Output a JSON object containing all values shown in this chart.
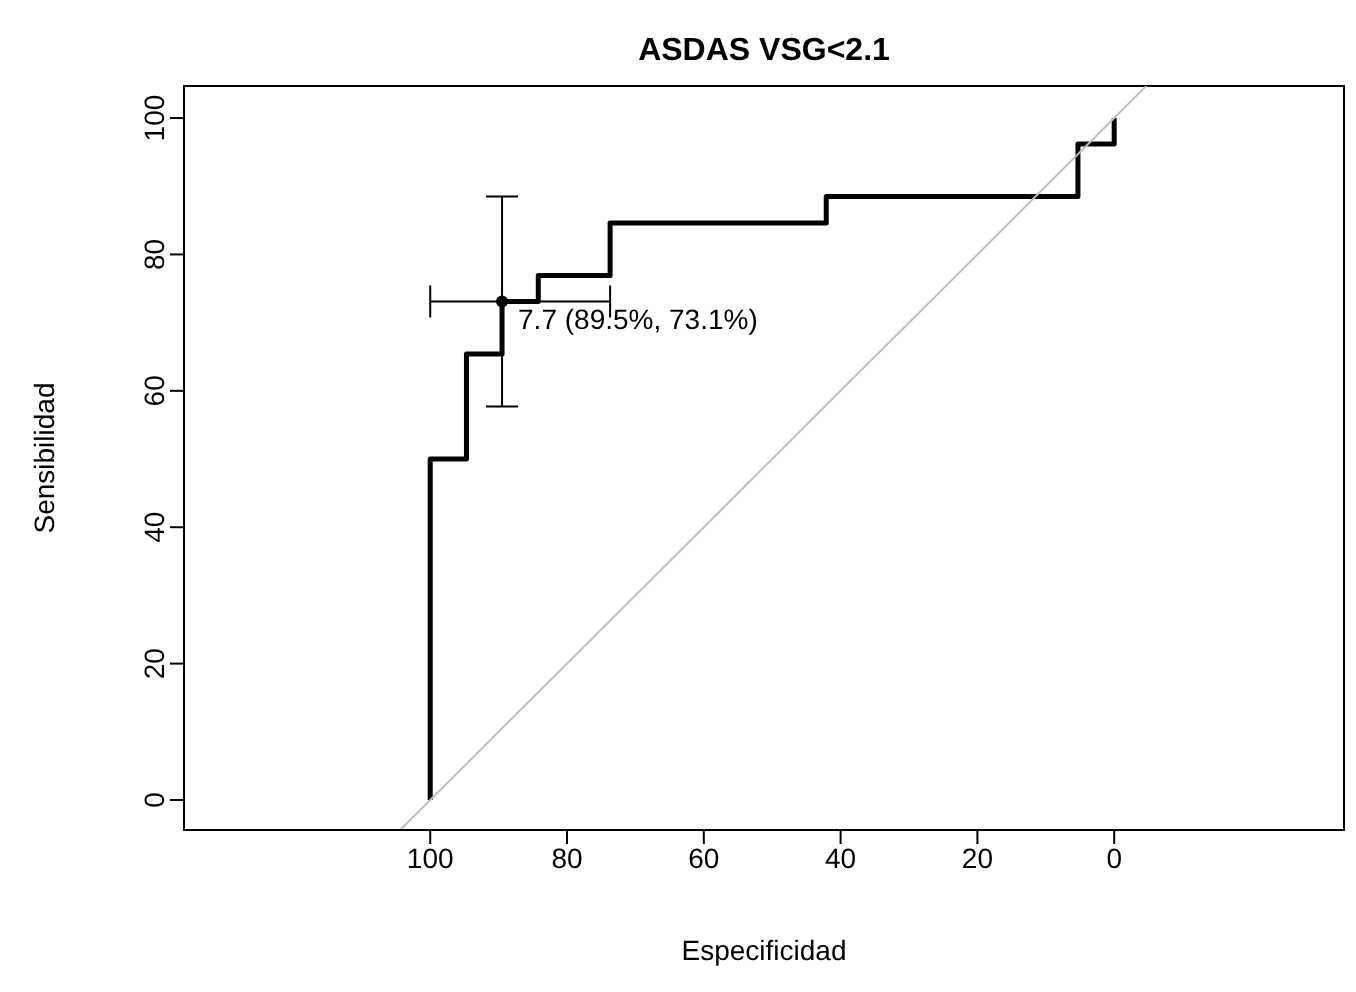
{
  "chart_data": {
    "type": "step",
    "title": "ASDAS VSG<2.1",
    "xlabel": "Especificidad",
    "ylabel": "Sensibilidad",
    "xlim": [
      136.0,
      -33.6
    ],
    "ylim": [
      -4.4,
      104.7
    ],
    "xticks": [
      100,
      80,
      60,
      40,
      20,
      0
    ],
    "yticks": [
      0,
      20,
      40,
      60,
      80,
      100
    ],
    "grid": false,
    "legend": false,
    "marker": "none",
    "line_style": "solid",
    "series": [
      {
        "color": "#000000",
        "x": [
          100,
          100,
          94.7,
          94.7,
          89.5,
          89.5,
          84.2,
          84.2,
          73.7,
          73.7,
          42.1,
          42.1,
          5.3,
          5.3,
          0,
          0
        ],
        "values": [
          0,
          50,
          50,
          65.4,
          65.4,
          73.1,
          73.1,
          76.9,
          76.9,
          84.6,
          84.6,
          88.5,
          88.5,
          96.2,
          96.2,
          100
        ]
      },
      {
        "type": "line",
        "color": "#bebebe",
        "x": [
          104.4,
          -4.7
        ],
        "values": [
          -4.4,
          104.7
        ]
      },
      {
        "type": "scatter",
        "color": "#000000",
        "marker": "circle",
        "x": [
          89.5
        ],
        "values": [
          73.1
        ],
        "errors": [
          [
            57.7,
            88.5
          ]
        ],
        "xerrors": [
          [
            73.7,
            100
          ]
        ]
      }
    ],
    "annotations": [
      {
        "text": "7.7 (89.5%, 73.1%)",
        "x": 89.5,
        "y": 73.1
      }
    ]
  }
}
